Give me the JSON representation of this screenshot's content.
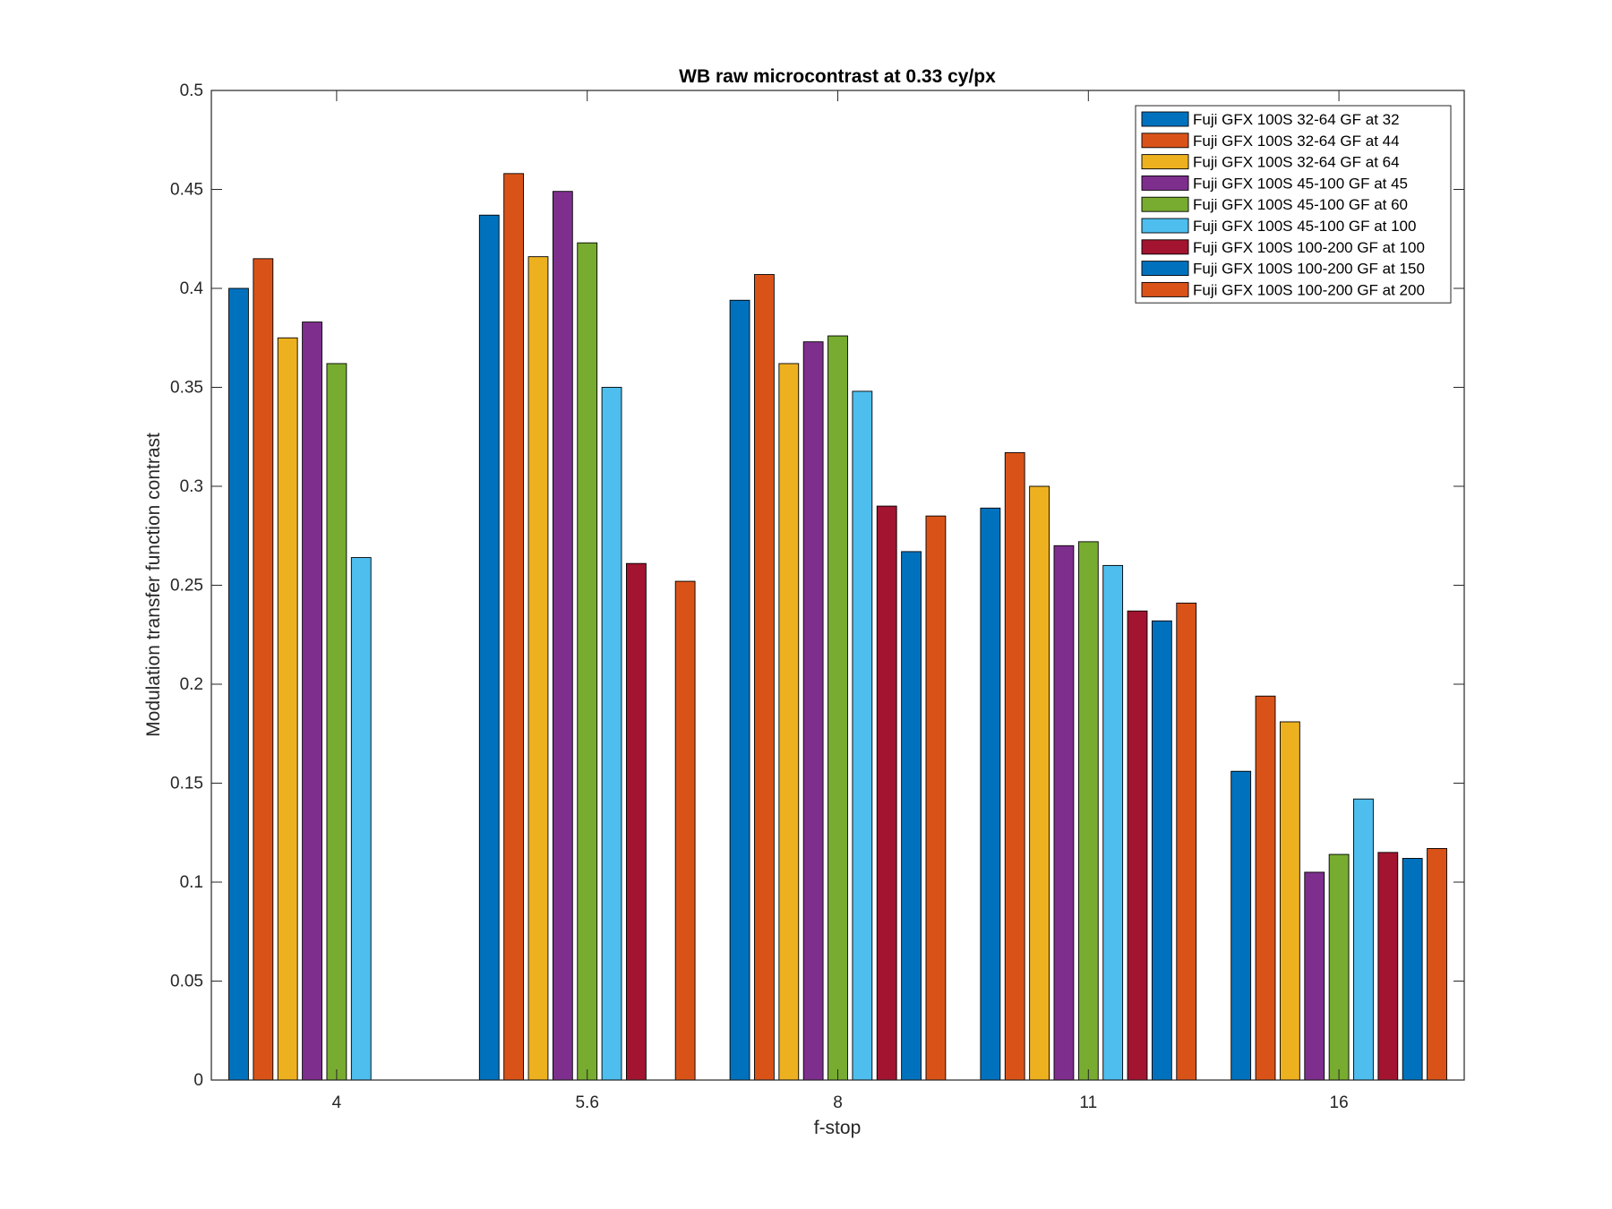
{
  "chart_data": {
    "type": "bar",
    "title": "WB raw  microcontrast at 0.33 cy/px",
    "xlabel": "f-stop",
    "ylabel": "Modulation transfer function contrast",
    "categories": [
      "4",
      "5.6",
      "8",
      "11",
      "16"
    ],
    "ylim": [
      0,
      0.5
    ],
    "yticks": [
      "0",
      "0.05",
      "0.1",
      "0.15",
      "0.2",
      "0.25",
      "0.3",
      "0.35",
      "0.4",
      "0.45",
      "0.5"
    ],
    "grid": false,
    "legend_position": "top-right",
    "series": [
      {
        "name": "Fuji GFX 100S 32-64 GF at 32",
        "color": "#0072BD",
        "values": [
          0.4,
          0.437,
          0.394,
          0.289,
          0.156
        ]
      },
      {
        "name": "Fuji GFX 100S 32-64 GF at 44",
        "color": "#D95319",
        "values": [
          0.415,
          0.458,
          0.407,
          0.317,
          0.194
        ]
      },
      {
        "name": "Fuji GFX 100S 32-64 GF at 64",
        "color": "#EDB120",
        "values": [
          0.375,
          0.416,
          0.362,
          0.3,
          0.181
        ]
      },
      {
        "name": "Fuji GFX 100S 45-100 GF at 45",
        "color": "#7E2F8E",
        "values": [
          0.383,
          0.449,
          0.373,
          0.27,
          0.105
        ]
      },
      {
        "name": "Fuji GFX 100S 45-100 GF at 60",
        "color": "#77AC30",
        "values": [
          0.362,
          0.423,
          0.376,
          0.272,
          0.114
        ]
      },
      {
        "name": "Fuji GFX 100S 45-100 GF at 100",
        "color": "#4DBEEE",
        "values": [
          0.264,
          0.35,
          0.348,
          0.26,
          0.142
        ]
      },
      {
        "name": "Fuji GFX 100S 100-200 GF at 100",
        "color": "#A2142F",
        "values": [
          null,
          0.261,
          0.29,
          0.237,
          0.115
        ]
      },
      {
        "name": "Fuji GFX 100S 100-200 GF at 150",
        "color": "#0072BD",
        "values": [
          null,
          null,
          0.267,
          0.232,
          0.112
        ]
      },
      {
        "name": "Fuji GFX 100S 100-200 GF at 200",
        "color": "#D95319",
        "values": [
          null,
          0.252,
          0.285,
          0.241,
          0.117
        ]
      }
    ]
  }
}
